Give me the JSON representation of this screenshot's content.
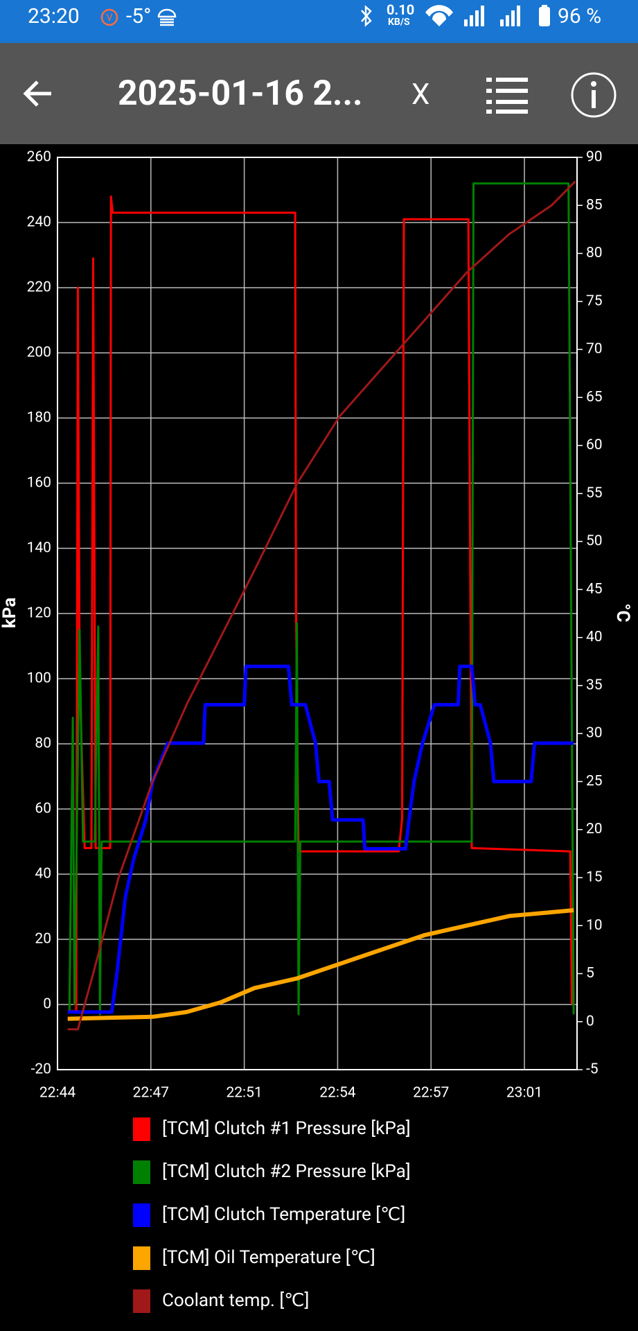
{
  "status_bar": {
    "time": "23:20",
    "temperature": "-5°",
    "speed": "0.10",
    "speed_unit": "KB/S",
    "battery": "96 %"
  },
  "toolbar": {
    "title": "2025-01-16 2...",
    "close": "X"
  },
  "chart_data": {
    "type": "line",
    "ylabel": "kPa",
    "y2label": "°C",
    "xlim": [
      1364.5,
      1382.86
    ],
    "xticks": [
      {
        "value": 1364.5,
        "label": "22:44"
      },
      {
        "value": 1367.8,
        "label": "22:47"
      },
      {
        "value": 1371.1,
        "label": "22:51"
      },
      {
        "value": 1374.4,
        "label": "22:54"
      },
      {
        "value": 1377.7,
        "label": "22:57"
      },
      {
        "value": 1381.0,
        "label": "23:01"
      }
    ],
    "ylim": [
      -20,
      260
    ],
    "yticks": [
      -20,
      0,
      20,
      40,
      60,
      80,
      100,
      120,
      140,
      160,
      180,
      200,
      220,
      240,
      260
    ],
    "y2lim": [
      -5,
      90
    ],
    "y2ticks": [
      -5,
      0,
      5,
      10,
      15,
      20,
      25,
      30,
      35,
      40,
      45,
      50,
      55,
      60,
      65,
      70,
      75,
      80,
      85,
      90
    ],
    "grid": true,
    "series": [
      {
        "name": "[TCM] Clutch #1 Pressure [kPa]",
        "color": "#ff0000",
        "x": [
          1364.86,
          1365.16,
          1365.22,
          1365.28,
          1365.46,
          1365.7,
          1365.76,
          1365.85,
          1366.36,
          1366.39,
          1366.45,
          1372.9,
          1372.93,
          1373.02,
          1376.56,
          1376.68,
          1376.74,
          1379.02,
          1379.14,
          1382.62,
          1382.68
        ],
        "values": [
          -2,
          -2,
          220,
          100,
          48,
          48,
          229,
          48,
          48,
          248,
          243,
          243,
          120,
          47,
          47,
          57,
          241,
          241,
          48,
          47,
          0
        ]
      },
      {
        "name": "[TCM] Clutch #2 Pressure [kPa]",
        "color": "#008000",
        "x": [
          1364.92,
          1365.04,
          1365.1,
          1365.28,
          1365.4,
          1365.82,
          1365.94,
          1366.0,
          1366.06,
          1372.9,
          1372.96,
          1373.02,
          1373.08,
          1379.14,
          1379.2,
          1382.56,
          1382.74
        ],
        "values": [
          -2,
          88,
          0,
          115,
          50,
          50,
          116,
          -3,
          50,
          50,
          117,
          -3,
          50,
          50,
          252,
          252,
          -3
        ]
      },
      {
        "name": "[TCM] Clutch Temperature [℃]",
        "color": "#0000ff",
        "axis": "y2",
        "x": [
          1364.86,
          1366.42,
          1366.6,
          1366.9,
          1367.2,
          1367.62,
          1367.86,
          1368.4,
          1369.66,
          1369.72,
          1371.1,
          1371.16,
          1372.66,
          1372.78,
          1373.26,
          1373.62,
          1373.74,
          1374.1,
          1374.22,
          1375.3,
          1375.36,
          1376.8,
          1376.92,
          1377.1,
          1377.4,
          1377.82,
          1378.66,
          1378.72,
          1379.14,
          1379.26,
          1379.44,
          1379.8,
          1379.92,
          1381.24,
          1381.36,
          1382.74
        ],
        "values": [
          1,
          1,
          5,
          13,
          17,
          21,
          25,
          29,
          29,
          33,
          33,
          37,
          37,
          33,
          33,
          29,
          25,
          25,
          21,
          21,
          18,
          18,
          21,
          25,
          29,
          33,
          33,
          37,
          37,
          33,
          33,
          29,
          25,
          25,
          29,
          29
        ]
      },
      {
        "name": "[TCM] Oil Temperature [℃]",
        "color": "#ffa500",
        "axis": "y2",
        "x": [
          1364.86,
          1367.86,
          1369.06,
          1370.26,
          1371.46,
          1372.96,
          1374.46,
          1375.96,
          1377.46,
          1378.96,
          1380.46,
          1382.74
        ],
        "values": [
          0.3,
          0.5,
          1,
          2,
          3.5,
          4.5,
          6,
          7.5,
          9,
          10,
          11,
          11.6
        ]
      },
      {
        "name": "Coolant temp. [℃]",
        "color": "#a01818",
        "axis": "y2",
        "x": [
          1364.86,
          1365.22,
          1365.76,
          1366.66,
          1367.86,
          1369.06,
          1370.26,
          1371.46,
          1372.96,
          1374.46,
          1375.96,
          1377.46,
          1378.96,
          1380.46,
          1381.96,
          1382.8
        ],
        "values": [
          -0.8,
          -0.8,
          5,
          15,
          25,
          33,
          40,
          47,
          56,
          63,
          68,
          73,
          78,
          82,
          85,
          87.5
        ]
      }
    ]
  }
}
